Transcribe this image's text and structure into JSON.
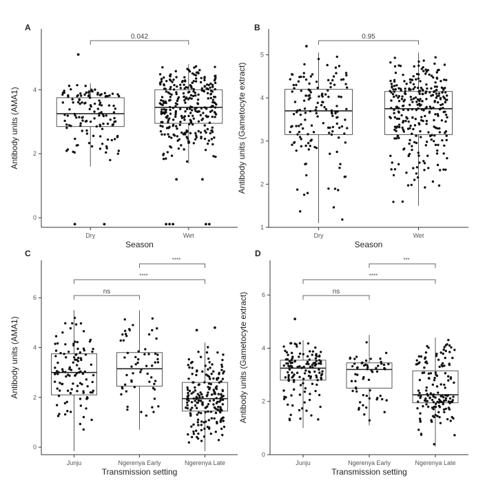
{
  "chart_data": [
    {
      "panel": "A",
      "type": "box",
      "xlabel": "Season",
      "ylabel": "Antibody units (AMA1)",
      "ylim": [
        -0.3,
        5.9
      ],
      "yticks": [
        0,
        2,
        4
      ],
      "categories": [
        "Dry",
        "Wet"
      ],
      "boxes": [
        {
          "category": "Dry",
          "min": 1.6,
          "q1": 2.85,
          "median": 3.25,
          "q3": 3.75,
          "max": 4.2,
          "outliers": [
            5.1,
            -0.2,
            -0.2
          ],
          "n": 130
        },
        {
          "category": "Wet",
          "min": 1.7,
          "q1": 2.95,
          "median": 3.45,
          "q3": 4.0,
          "max": 4.8,
          "outliers": [
            1.2,
            1.2,
            -0.2,
            -0.2,
            -0.2,
            -0.2,
            -0.2
          ],
          "n": 300
        }
      ],
      "comparisons": [
        {
          "from": "Dry",
          "to": "Wet",
          "label": "0.042"
        }
      ]
    },
    {
      "panel": "B",
      "type": "box",
      "xlabel": "Season",
      "ylabel": "Antibody units (Gametocyte extract)",
      "ylim": [
        1,
        5.6
      ],
      "yticks": [
        1,
        2,
        3,
        4,
        5
      ],
      "categories": [
        "Dry",
        "Wet"
      ],
      "boxes": [
        {
          "category": "Dry",
          "min": 1.1,
          "q1": 3.15,
          "median": 3.7,
          "q3": 4.2,
          "max": 5.05,
          "outliers": [
            5.2
          ],
          "n": 150
        },
        {
          "category": "Wet",
          "min": 1.5,
          "q1": 3.15,
          "median": 3.75,
          "q3": 4.15,
          "max": 5.05,
          "outliers": [],
          "n": 300
        }
      ],
      "comparisons": [
        {
          "from": "Dry",
          "to": "Wet",
          "label": "0.95"
        }
      ]
    },
    {
      "panel": "C",
      "type": "box",
      "xlabel": "Transmission setting",
      "ylabel": "Antibody units (AMA1)",
      "ylim": [
        -0.3,
        7.5
      ],
      "yticks": [
        0,
        2,
        4,
        6
      ],
      "categories": [
        "Junju",
        "Ngerenya Early",
        "Ngerenya Late"
      ],
      "boxes": [
        {
          "category": "Junju",
          "min": -0.15,
          "q1": 2.1,
          "median": 3.0,
          "q3": 3.75,
          "max": 5.5,
          "outliers": [],
          "n": 110
        },
        {
          "category": "Ngerenya Early",
          "min": 0.7,
          "q1": 2.45,
          "median": 3.15,
          "q3": 3.8,
          "max": 5.5,
          "outliers": [],
          "n": 60
        },
        {
          "category": "Ngerenya Late",
          "min": -0.15,
          "q1": 1.45,
          "median": 1.95,
          "q3": 2.6,
          "max": 4.2,
          "outliers": [
            4.7,
            4.8
          ],
          "n": 200
        }
      ],
      "comparisons": [
        {
          "from": "Junju",
          "to": "Ngerenya Early",
          "label": "ns"
        },
        {
          "from": "Junju",
          "to": "Ngerenya Late",
          "label": "****"
        },
        {
          "from": "Ngerenya Early",
          "to": "Ngerenya Late",
          "label": "****"
        }
      ]
    },
    {
      "panel": "D",
      "type": "box",
      "xlabel": "Transmission setting",
      "ylabel": "Antibody units (Gametocyte extract)",
      "ylim": [
        0,
        7.3
      ],
      "yticks": [
        0,
        2,
        4,
        6
      ],
      "categories": [
        "Junju",
        "Ngerenya Early",
        "Ngerenya Late"
      ],
      "boxes": [
        {
          "category": "Junju",
          "min": 1.0,
          "q1": 2.8,
          "median": 3.25,
          "q3": 3.55,
          "max": 4.3,
          "outliers": [
            5.1
          ],
          "n": 130
        },
        {
          "category": "Ngerenya Early",
          "min": 1.1,
          "q1": 2.5,
          "median": 3.2,
          "q3": 3.45,
          "max": 4.5,
          "outliers": [],
          "n": 60
        },
        {
          "category": "Ngerenya Late",
          "min": 0.3,
          "q1": 1.95,
          "median": 2.25,
          "q3": 3.15,
          "max": 4.4,
          "outliers": [],
          "n": 150
        }
      ],
      "comparisons": [
        {
          "from": "Junju",
          "to": "Ngerenya Early",
          "label": "ns"
        },
        {
          "from": "Junju",
          "to": "Ngerenya Late",
          "label": "****"
        },
        {
          "from": "Ngerenya Early",
          "to": "Ngerenya Late",
          "label": "***"
        }
      ]
    }
  ]
}
